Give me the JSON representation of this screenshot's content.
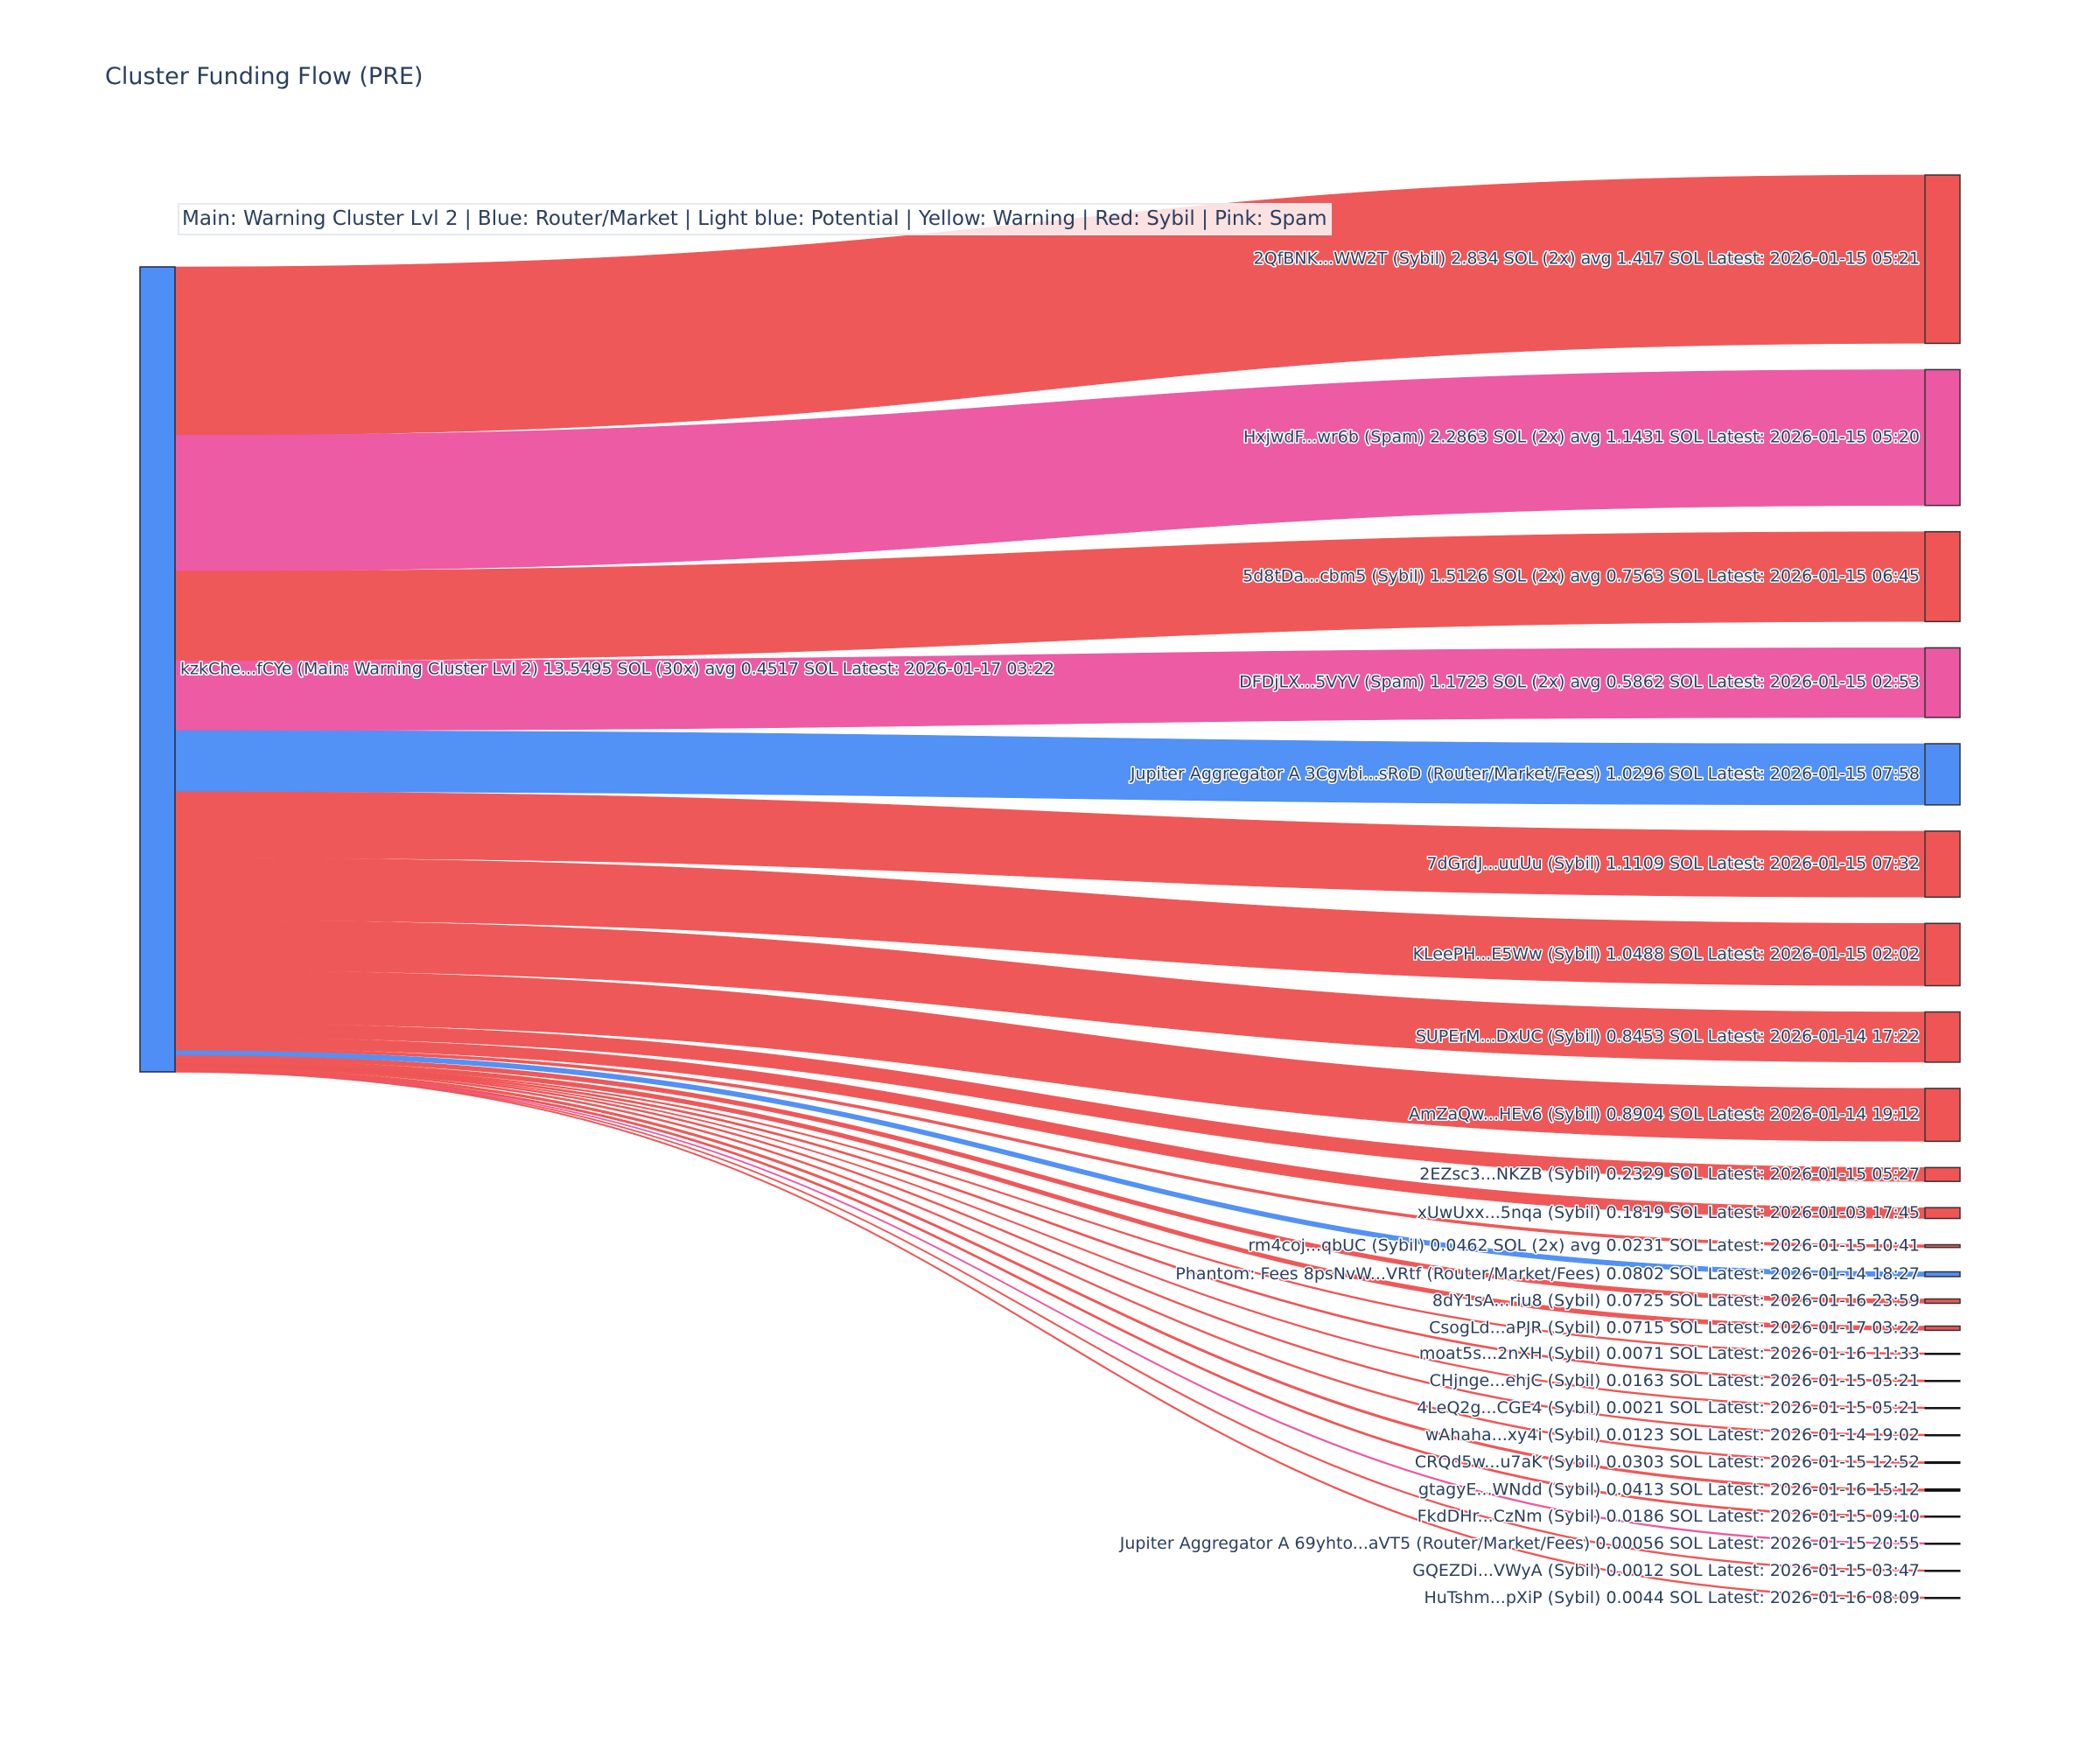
{
  "chart_data": {
    "type": "sankey",
    "title": "Cluster Funding Flow (PRE)",
    "legend_annotation": "Main: Warning Cluster Lvl 2  |  Blue: Router/Market | Light blue: Potential | Yellow: Warning | Red: Sybil | Pink: Spam",
    "colors": {
      "sybil": "#ef5555",
      "spam": "#ec58a2",
      "router": "#4f8ff5",
      "main": "#4f8ff5"
    },
    "source": {
      "label": "kzkChe...fCYe (Main: Warning Cluster Lvl 2) 13.5495 SOL (30x) avg 0.4517 SOL Latest: 2026-01-17 03:22",
      "category": "main",
      "value": 13.5495
    },
    "targets": [
      {
        "label": "2QfBNK...WW2T (Sybil) 2.834 SOL (2x) avg 1.417 SOL Latest: 2026-01-15 05:21",
        "category": "sybil",
        "value": 2.834
      },
      {
        "label": "HxjwdF...wr6b (Spam) 2.2863 SOL (2x) avg 1.1431 SOL Latest: 2026-01-15 05:20",
        "category": "spam",
        "value": 2.2863
      },
      {
        "label": "5d8tDa...cbm5 (Sybil) 1.5126 SOL (2x) avg 0.7563 SOL Latest: 2026-01-15 06:45",
        "category": "sybil",
        "value": 1.5126
      },
      {
        "label": "DFDjLX...5VYV (Spam) 1.1723 SOL (2x) avg 0.5862 SOL Latest: 2026-01-15 02:53",
        "category": "spam",
        "value": 1.1723
      },
      {
        "label": "Jupiter Aggregator A 3Cgvbi...sRoD (Router/Market/Fees) 1.0296 SOL Latest: 2026-01-15 07:58",
        "category": "router",
        "value": 1.0296
      },
      {
        "label": "7dGrdJ...uuUu (Sybil) 1.1109 SOL Latest: 2026-01-15 07:32",
        "category": "sybil",
        "value": 1.1109
      },
      {
        "label": "KLeePH...E5Ww (Sybil) 1.0488 SOL Latest: 2026-01-15 02:02",
        "category": "sybil",
        "value": 1.0488
      },
      {
        "label": "SUPErM...DxUC (Sybil) 0.8453 SOL Latest: 2026-01-14 17:22",
        "category": "sybil",
        "value": 0.8453
      },
      {
        "label": "AmZaQw...HEv6 (Sybil) 0.8904 SOL Latest: 2026-01-14 19:12",
        "category": "sybil",
        "value": 0.8904
      },
      {
        "label": "2EZsc3...NKZB (Sybil) 0.2329 SOL Latest: 2026-01-15 05:27",
        "category": "sybil",
        "value": 0.2329
      },
      {
        "label": "xUwUxx...5nqa (Sybil) 0.1819 SOL Latest: 2026-01-03 17:45",
        "category": "sybil",
        "value": 0.1819
      },
      {
        "label": "rm4coj...qbUC (Sybil) 0.0462 SOL (2x) avg 0.0231 SOL Latest: 2026-01-15 10:41",
        "category": "sybil",
        "value": 0.0462
      },
      {
        "label": "Phantom: Fees 8psNvW...VRtf (Router/Market/Fees) 0.0802 SOL Latest: 2026-01-14 18:27",
        "category": "router",
        "value": 0.0802
      },
      {
        "label": "8dY1sA...riu8 (Sybil) 0.0725 SOL Latest: 2026-01-16 23:59",
        "category": "sybil",
        "value": 0.0725
      },
      {
        "label": "CsogLd...aPJR (Sybil) 0.0715 SOL Latest: 2026-01-17 03:22",
        "category": "sybil",
        "value": 0.0715
      },
      {
        "label": "moat5s...2nXH (Sybil) 0.0071 SOL Latest: 2026-01-16 11:33",
        "category": "sybil",
        "value": 0.0071
      },
      {
        "label": "CHjnge...ehjC (Sybil) 0.0163 SOL Latest: 2026-01-15 05:21",
        "category": "sybil",
        "value": 0.0163
      },
      {
        "label": "4LeQ2g...CGE4 (Sybil) 0.0021 SOL Latest: 2026-01-15 05:21",
        "category": "sybil",
        "value": 0.0021
      },
      {
        "label": "wAhaha...xy4i (Sybil) 0.0123 SOL Latest: 2026-01-14 19:02",
        "category": "sybil",
        "value": 0.0123
      },
      {
        "label": "CRQd5w...u7aK (Sybil) 0.0303 SOL Latest: 2026-01-15 12:52",
        "category": "sybil",
        "value": 0.0303
      },
      {
        "label": "gtagyE...WNdd (Sybil) 0.0413 SOL Latest: 2026-01-16 15:12",
        "category": "sybil",
        "value": 0.0413
      },
      {
        "label": "FkdDHr...CzNm (Sybil) 0.0186 SOL Latest: 2026-01-15 09:10",
        "category": "sybil",
        "value": 0.0186
      },
      {
        "label": "Jupiter Aggregator A 69yhto...aVT5 (Router/Market/Fees) 0.00056 SOL Latest: 2026-01-15 20:55",
        "category": "router",
        "link_category": "spam",
        "value": 0.00056
      },
      {
        "label": "GQEZDi...VWyA (Sybil) 0.0012 SOL Latest: 2026-01-15 03:47",
        "category": "sybil",
        "value": 0.0012
      },
      {
        "label": "HuTshm...pXiP (Sybil) 0.0044 SOL Latest: 2026-01-16 08:09",
        "category": "sybil",
        "value": 0.0044
      }
    ]
  }
}
